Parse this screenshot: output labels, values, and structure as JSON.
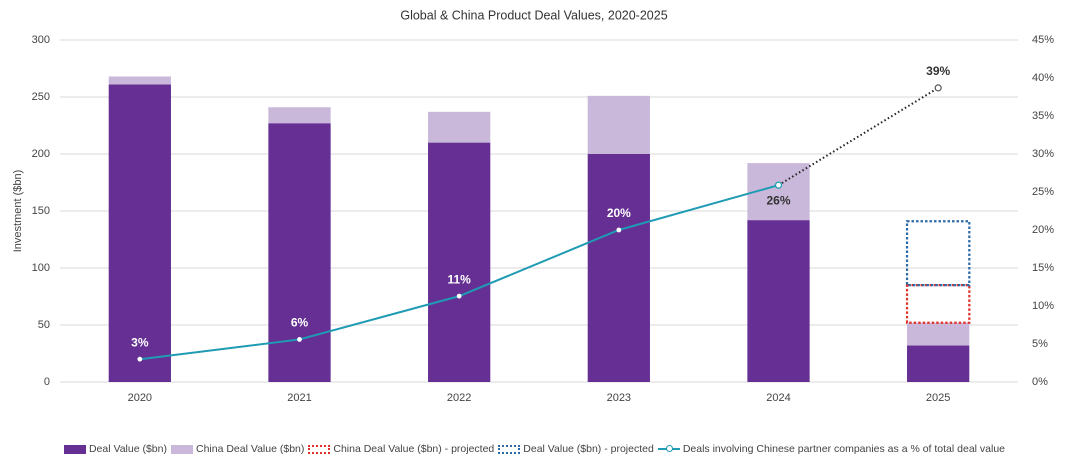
{
  "chart_data": {
    "type": "bar",
    "title": "Global & China Product Deal Values, 2020-2025",
    "y_label": "Investment ($bn)",
    "categories": [
      "2020",
      "2021",
      "2022",
      "2023",
      "2024",
      "2025"
    ],
    "ylim": [
      0,
      300
    ],
    "yticks": [
      0,
      50,
      100,
      150,
      200,
      250,
      300
    ],
    "y2lim": [
      0,
      45
    ],
    "y2ticks": [
      {
        "value": 0,
        "label": "0%"
      },
      {
        "value": 5,
        "label": "5%"
      },
      {
        "value": 10,
        "label": "10%"
      },
      {
        "value": 15,
        "label": "15%"
      },
      {
        "value": 20,
        "label": "20%"
      },
      {
        "value": 25,
        "label": "25%"
      },
      {
        "value": 30,
        "label": "30%"
      },
      {
        "value": 35,
        "label": "35%"
      },
      {
        "value": 40,
        "label": "40%"
      },
      {
        "value": 45,
        "label": "45%"
      }
    ],
    "grid": true,
    "stacked": true,
    "legend": "bottom",
    "series": [
      {
        "name": "Deal Value ($bn)",
        "color": "#652f94",
        "style": "solid",
        "values": [
          261,
          227,
          210,
          200,
          142,
          32
        ]
      },
      {
        "name": "China Deal Value ($bn)",
        "color": "#c9b8da",
        "style": "solid",
        "values": [
          7,
          14,
          27,
          51,
          50,
          20
        ]
      },
      {
        "name": "China Deal Value ($bn) - projected",
        "color": "#e0302a",
        "style": "dashed",
        "values": [
          null,
          null,
          null,
          null,
          null,
          33
        ]
      },
      {
        "name": "Deal Value ($bn) - projected",
        "color": "#2a6aa8",
        "style": "dashed",
        "values": [
          null,
          null,
          null,
          null,
          null,
          56
        ]
      },
      {
        "name": "Deals involving Chinese partner companies as a % of total deal value",
        "color": "#1f9bb4",
        "type": "line",
        "axis": "y2",
        "values": [
          3,
          5.6,
          11.3,
          20,
          25.9,
          38.7
        ],
        "value_labels": [
          "3%",
          "6%",
          "11%",
          "20%",
          "26%",
          "39%"
        ]
      }
    ]
  }
}
